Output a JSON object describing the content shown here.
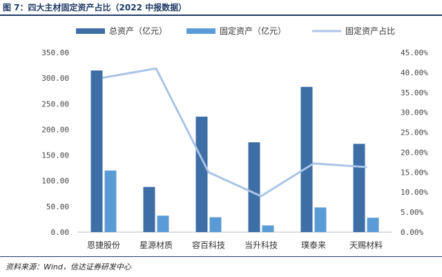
{
  "header": {
    "title": "图 7：四大主材固定资产占比（2022 中报数据）"
  },
  "footer": {
    "source": "资料来源：Wind，信达证券研发中心"
  },
  "chart_data": {
    "type": "bar",
    "categories": [
      "恩捷股份",
      "星源材质",
      "容百科技",
      "当升科技",
      "璞泰来",
      "天赐材料"
    ],
    "series": [
      {
        "name": "总资产（亿元）",
        "type": "bar",
        "axis": "left",
        "color": "#3d6ea6",
        "values": [
          315,
          88,
          225,
          175,
          283,
          172
        ]
      },
      {
        "name": "固定资产（亿元）",
        "type": "bar",
        "axis": "left",
        "color": "#5b9bd5",
        "values": [
          120,
          32,
          29,
          13,
          48,
          28
        ]
      },
      {
        "name": "固定资产占比",
        "type": "line",
        "axis": "right",
        "color": "#a9c4e6",
        "values": [
          38.7,
          41.0,
          15.0,
          9.0,
          17.2,
          16.3
        ]
      }
    ],
    "y_left": {
      "min": 0,
      "max": 350,
      "step": 50,
      "tick_labels": [
        "0.00",
        "50.00",
        "100.00",
        "150.00",
        "200.00",
        "250.00",
        "300.00",
        "350.00"
      ]
    },
    "y_right": {
      "min": 0,
      "max": 45,
      "step": 5,
      "unit": "%",
      "tick_labels": [
        "0.00%",
        "5.00%",
        "10.00%",
        "15.00%",
        "20.00%",
        "25.00%",
        "30.00%",
        "35.00%",
        "40.00%",
        "45.00%"
      ]
    },
    "legend_position": "top",
    "grid": false
  }
}
